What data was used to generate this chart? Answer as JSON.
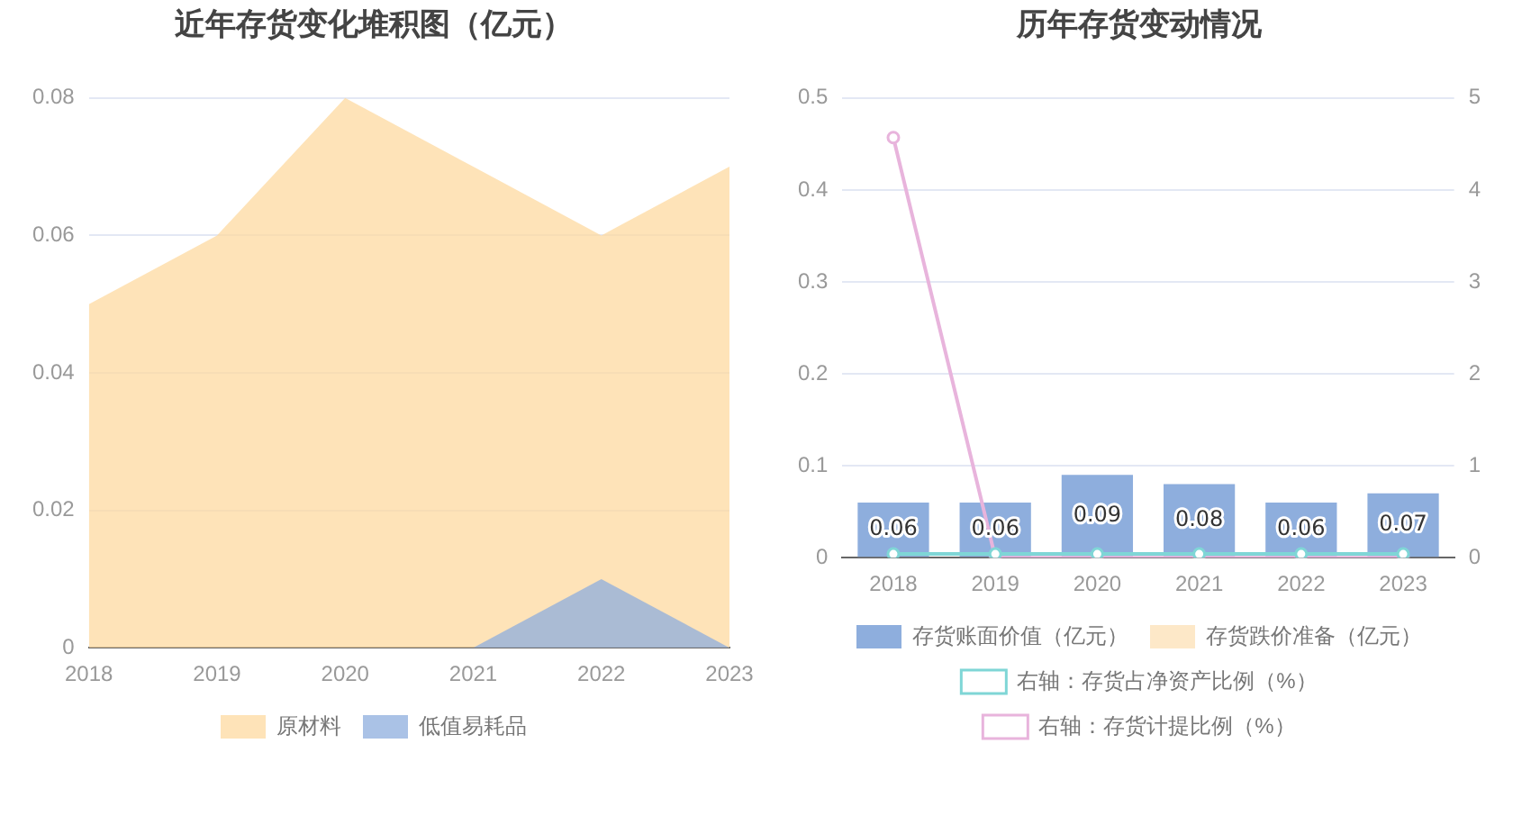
{
  "chart_data": [
    {
      "type": "area",
      "title": "近年存货变化堆积图（亿元）",
      "categories": [
        "2018",
        "2019",
        "2020",
        "2021",
        "2022",
        "2023"
      ],
      "series": [
        {
          "name": "原材料",
          "color": "#fdd9a0",
          "values": [
            0.05,
            0.06,
            0.08,
            0.07,
            0.06,
            0.07
          ]
        },
        {
          "name": "低值易耗品",
          "color": "#8eaedd",
          "values": [
            null,
            null,
            null,
            0,
            0.01,
            0
          ]
        }
      ],
      "ylim": [
        0,
        0.08
      ],
      "yticks": [
        0,
        0.02,
        0.04,
        0.06,
        0.08
      ],
      "grid": "y",
      "legend": "bottom"
    },
    {
      "type": "bar",
      "title": "历年存货变动情况",
      "categories": [
        "2018",
        "2019",
        "2020",
        "2021",
        "2022",
        "2023"
      ],
      "series": [
        {
          "name": "存货账面价值（亿元）",
          "color": "#8eaedd",
          "values": [
            0.06,
            0.06,
            0.09,
            0.08,
            0.06,
            0.07
          ],
          "value_labels": [
            "0.06",
            "0.06",
            "0.09",
            "0.08",
            "0.06",
            "0.07"
          ]
        },
        {
          "name": "存货跌价准备（亿元）",
          "color": "#fde8c8",
          "values": [
            null,
            null,
            null,
            null,
            null,
            null
          ]
        },
        {
          "name": "右轴：存货占净资产比例（%）",
          "type": "line",
          "axis": "y2",
          "color": "#7fd6d6",
          "values": [
            0.04,
            0.04,
            0.04,
            0.04,
            0.04,
            0.04
          ]
        },
        {
          "name": "右轴：存货计提比例（%）",
          "type": "line",
          "axis": "y2",
          "color": "#e8b4dc",
          "values": [
            4.57,
            0,
            0,
            0,
            0,
            0
          ]
        }
      ],
      "ylim": [
        0,
        0.5
      ],
      "yticks": [
        0,
        0.1,
        0.2,
        0.3,
        0.4,
        0.5
      ],
      "y2lim": [
        0,
        5
      ],
      "y2ticks": [
        0,
        1,
        2,
        3,
        4,
        5
      ],
      "grid": "y",
      "legend": "bottom",
      "marker": "circle"
    }
  ]
}
